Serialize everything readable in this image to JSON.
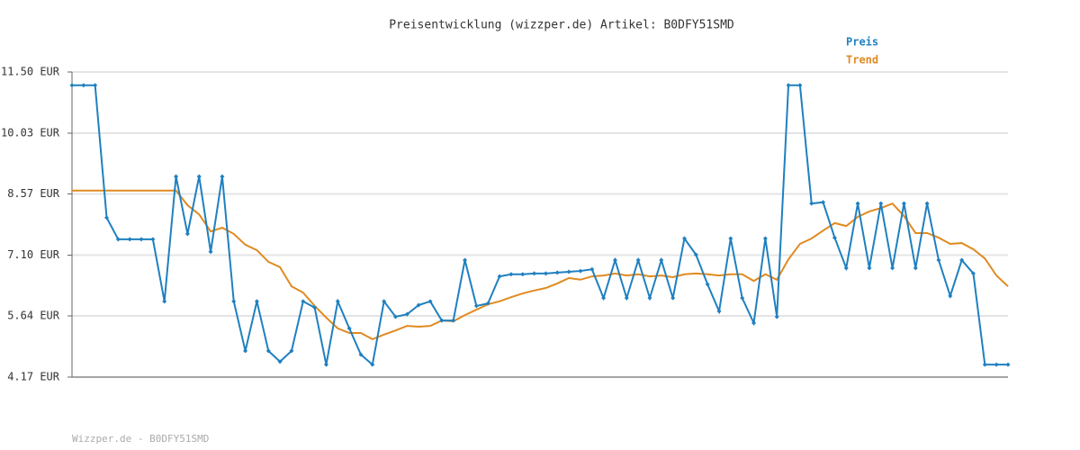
{
  "chart_data": {
    "type": "line",
    "title": "Preisentwicklung (wizzper.de) Artikel: B0DFY51SMD",
    "footer": "Wizzper.de - B0DFY51SMD",
    "ylim": [
      4.17,
      11.5
    ],
    "yticks": [
      {
        "value": 4.17,
        "label": "4.17 EUR"
      },
      {
        "value": 5.64,
        "label": "5.64 EUR"
      },
      {
        "value": 7.1,
        "label": "7.10 EUR"
      },
      {
        "value": 8.57,
        "label": "8.57 EUR"
      },
      {
        "value": 10.03,
        "label": "10.03 EUR"
      },
      {
        "value": 11.5,
        "label": "11.50 EUR"
      }
    ],
    "grid": true,
    "series": [
      {
        "name": "Preis",
        "color": "#1f80c0",
        "markers": true,
        "values": [
          11.18,
          11.18,
          11.18,
          8.0,
          7.48,
          7.48,
          7.48,
          7.48,
          5.99,
          8.99,
          7.61,
          8.99,
          7.18,
          8.99,
          5.99,
          4.8,
          5.99,
          4.8,
          4.54,
          4.8,
          5.99,
          5.84,
          4.47,
          5.99,
          5.34,
          4.71,
          4.47,
          5.99,
          5.62,
          5.68,
          5.9,
          5.99,
          5.53,
          5.53,
          6.98,
          5.88,
          5.94,
          6.59,
          6.64,
          6.64,
          6.66,
          6.66,
          6.68,
          6.7,
          6.72,
          6.76,
          6.07,
          6.98,
          6.07,
          6.98,
          6.07,
          6.98,
          6.07,
          7.5,
          7.11,
          6.4,
          5.75,
          7.5,
          6.07,
          5.47,
          7.5,
          5.62,
          11.18,
          11.18,
          8.34,
          8.37,
          7.52,
          6.79,
          8.34,
          6.79,
          8.34,
          6.79,
          8.34,
          6.79,
          8.34,
          6.98,
          6.12,
          6.98,
          6.66,
          4.47,
          4.47,
          4.47
        ]
      },
      {
        "name": "Trend",
        "color": "#e08a20",
        "markers": false,
        "values": [
          8.65,
          8.65,
          8.65,
          8.65,
          8.65,
          8.65,
          8.65,
          8.65,
          8.65,
          8.65,
          8.3,
          8.08,
          7.67,
          7.76,
          7.61,
          7.35,
          7.22,
          6.94,
          6.81,
          6.35,
          6.2,
          5.88,
          5.6,
          5.34,
          5.23,
          5.23,
          5.08,
          5.19,
          5.29,
          5.4,
          5.38,
          5.4,
          5.53,
          5.51,
          5.66,
          5.79,
          5.92,
          5.99,
          6.09,
          6.18,
          6.25,
          6.31,
          6.42,
          6.55,
          6.51,
          6.59,
          6.61,
          6.66,
          6.61,
          6.64,
          6.59,
          6.61,
          6.57,
          6.64,
          6.66,
          6.64,
          6.61,
          6.64,
          6.64,
          6.48,
          6.64,
          6.51,
          7.0,
          7.37,
          7.5,
          7.69,
          7.87,
          7.8,
          8.02,
          8.15,
          8.23,
          8.34,
          8.04,
          7.63,
          7.63,
          7.52,
          7.37,
          7.39,
          7.24,
          7.02,
          6.61,
          6.35
        ]
      }
    ]
  }
}
